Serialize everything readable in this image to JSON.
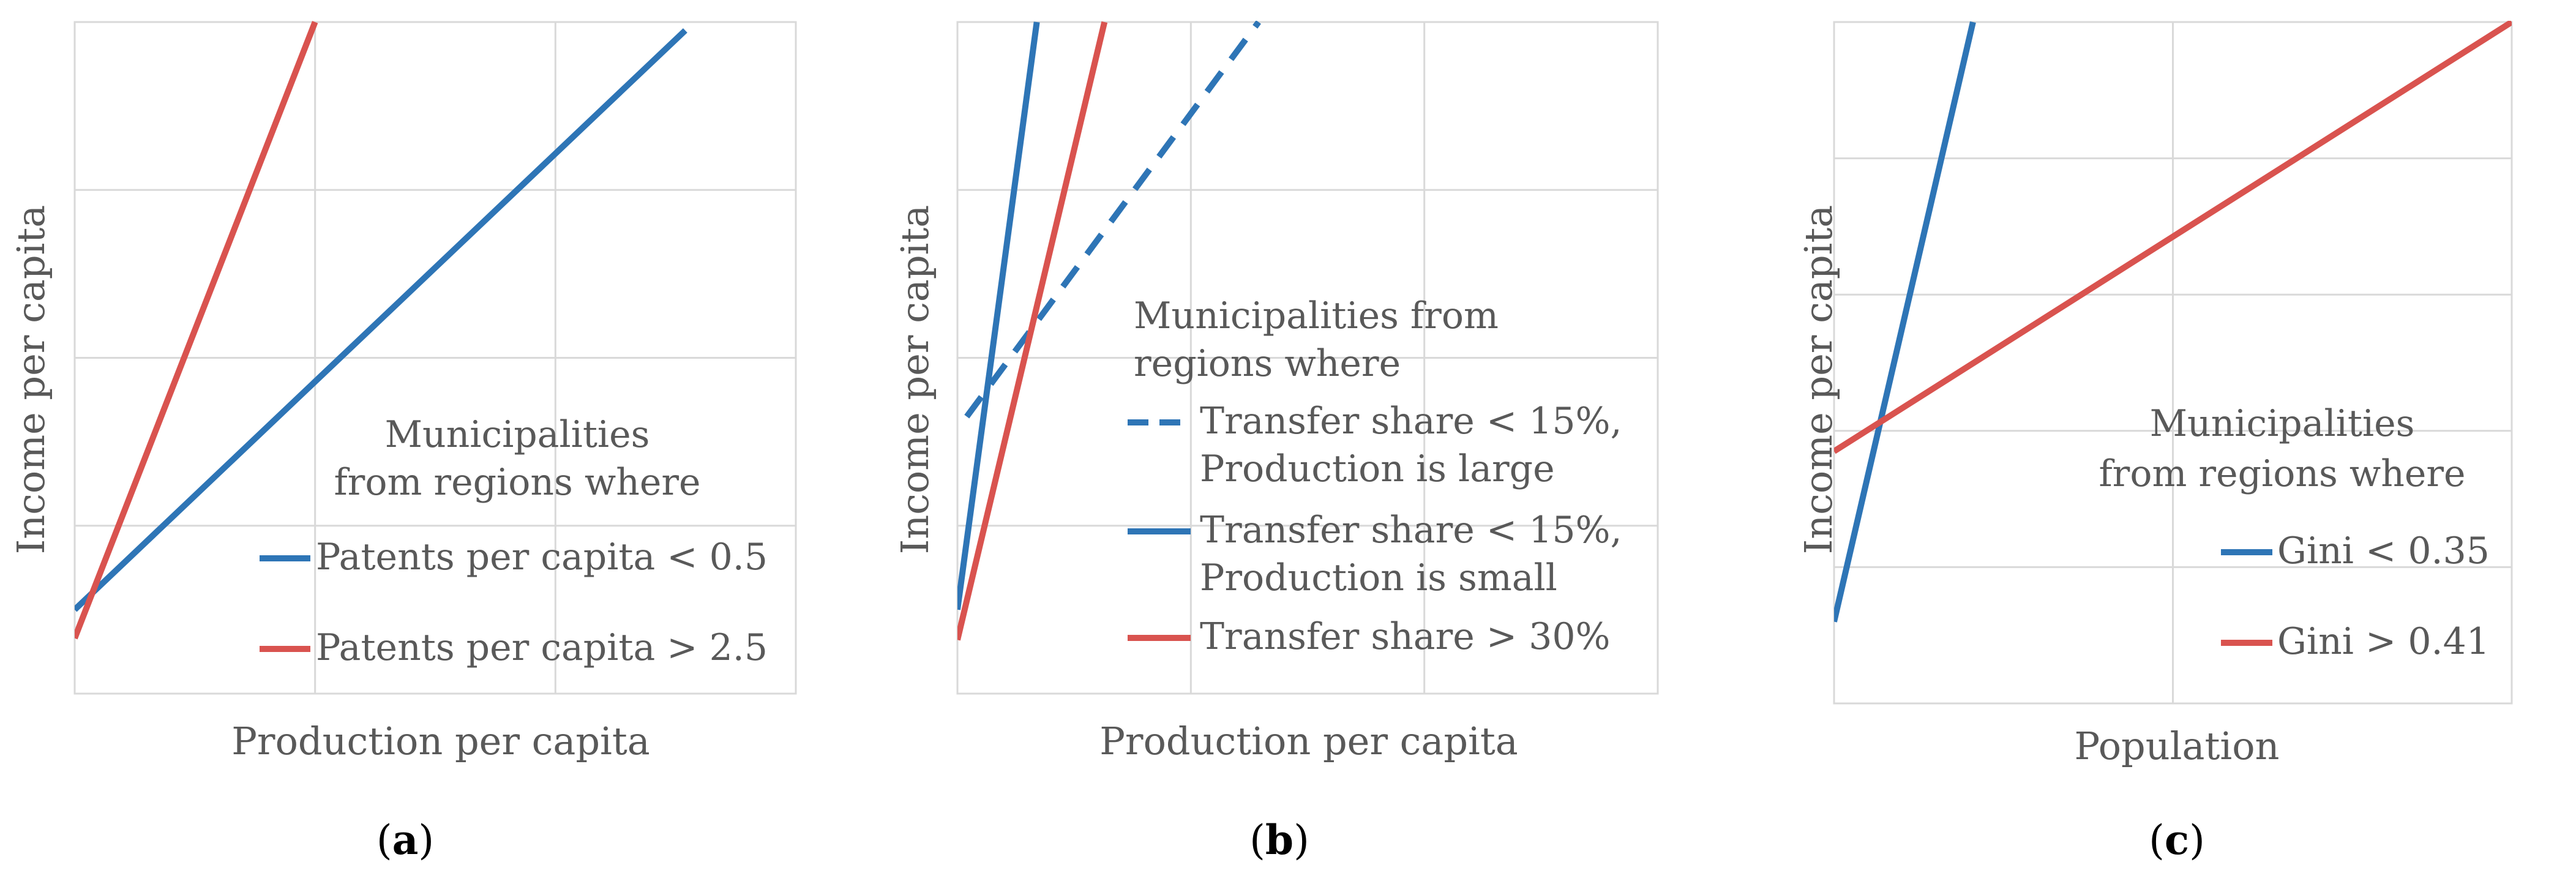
{
  "chart_data": [
    {
      "type": "line",
      "panel_label": "a",
      "xlabel": "Production per capita",
      "ylabel": "Income per capita",
      "grid": true,
      "xlim": [
        0,
        3
      ],
      "ylim": [
        0,
        4
      ],
      "legend": {
        "title_lines": [
          "Municipalities",
          "from  regions  where"
        ],
        "position": "bottom-right"
      },
      "series": [
        {
          "name": "Patents per capita < 0.5",
          "color": "#2e75b6",
          "style": "solid",
          "x": [
            0,
            2.54
          ],
          "y": [
            0.5,
            3.95
          ]
        },
        {
          "name": "Patents per capita > 2.5",
          "color": "#d9534f",
          "style": "solid",
          "x": [
            0,
            1.0
          ],
          "y": [
            0.33,
            4.0
          ]
        }
      ]
    },
    {
      "type": "line",
      "panel_label": "b",
      "xlabel": "Production per capita",
      "ylabel": "Income per capita",
      "grid": true,
      "xlim": [
        0,
        3
      ],
      "ylim": [
        0,
        4
      ],
      "legend": {
        "title_lines": [
          "Municipalities from",
          "regions where"
        ],
        "position": "center-right"
      },
      "series": [
        {
          "name_lines": [
            "Transfer share < 15%,",
            "Production is large"
          ],
          "color": "#2e75b6",
          "style": "dashed",
          "x": [
            0.04,
            1.29
          ],
          "y": [
            1.65,
            4.0
          ]
        },
        {
          "name_lines": [
            "Transfer share < 15%,",
            "Production is small"
          ],
          "color": "#2e75b6",
          "style": "solid",
          "x": [
            0,
            0.34
          ],
          "y": [
            0.5,
            4.0
          ]
        },
        {
          "name_lines": [
            "Transfer share > 30%"
          ],
          "color": "#d9534f",
          "style": "solid",
          "x": [
            0,
            0.63
          ],
          "y": [
            0.32,
            4.0
          ]
        }
      ]
    },
    {
      "type": "line",
      "panel_label": "c",
      "xlabel": "Population",
      "ylabel": "Income per capita",
      "grid": true,
      "xlim": [
        0,
        2
      ],
      "ylim": [
        0,
        5
      ],
      "legend": {
        "title_lines": [
          "Municipalities",
          "from  regions   where"
        ],
        "position": "bottom-right"
      },
      "series": [
        {
          "name": "Gini < 0.35",
          "color": "#2e75b6",
          "style": "solid",
          "x": [
            0,
            0.41
          ],
          "y": [
            0.6,
            5.0
          ]
        },
        {
          "name": "Gini > 0.41",
          "color": "#d9534f",
          "style": "solid",
          "x": [
            0,
            2.0
          ],
          "y": [
            1.85,
            5.0
          ]
        }
      ]
    }
  ]
}
